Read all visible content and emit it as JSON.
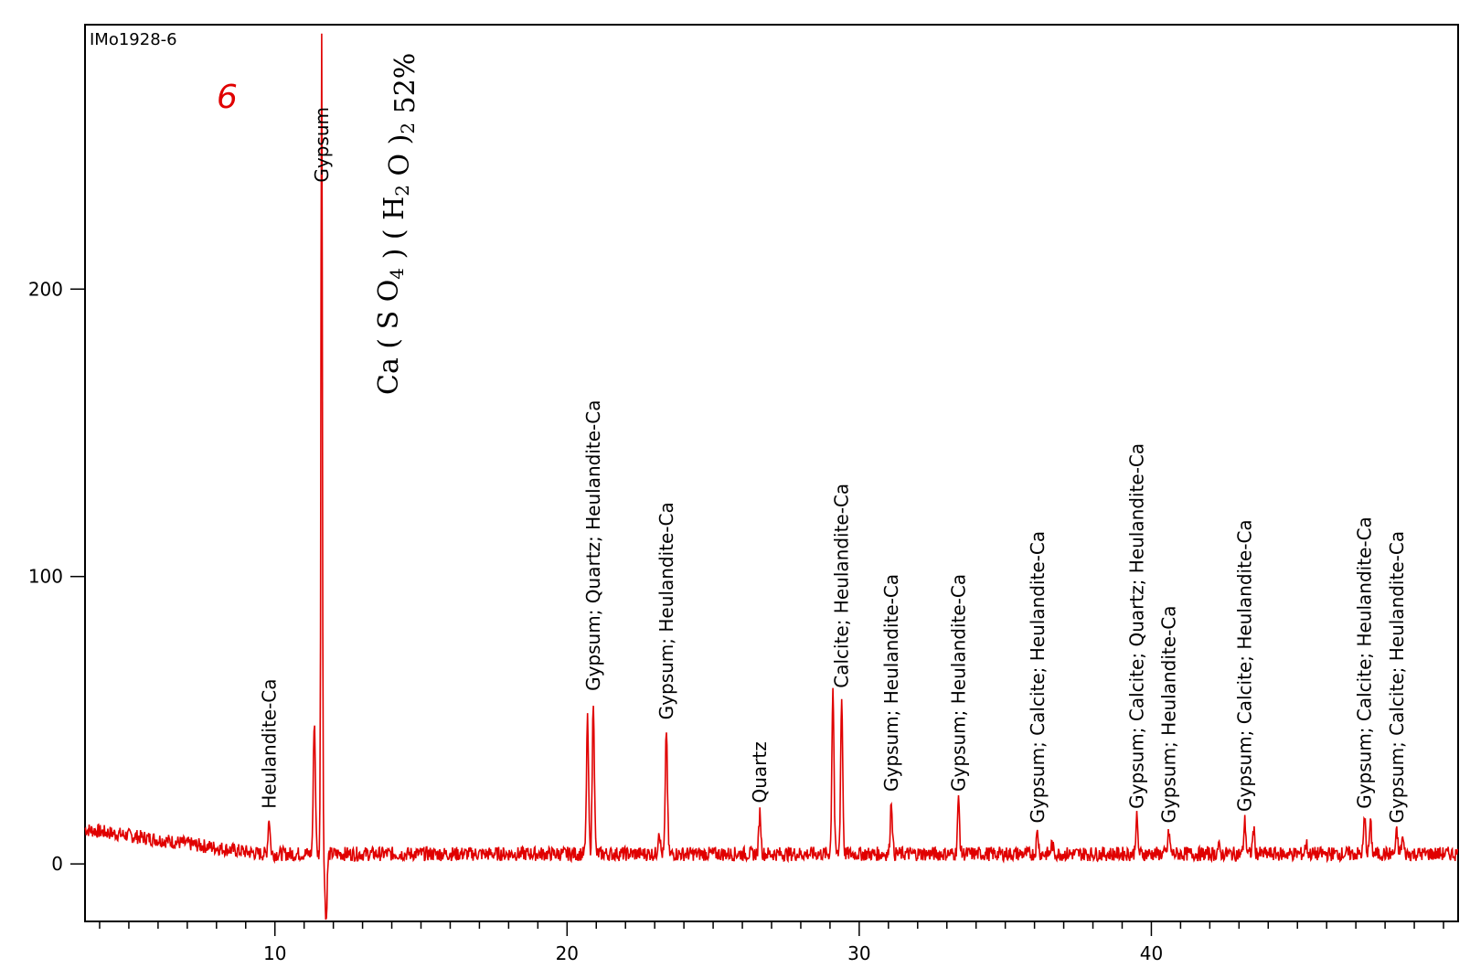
{
  "chart_data": {
    "type": "line",
    "title": "",
    "xlabel": "",
    "ylabel": "",
    "xlim": [
      3.5,
      50.5
    ],
    "ylim": [
      -20,
      292
    ],
    "x_ticks": [
      10,
      20,
      30,
      40
    ],
    "y_ticks": [
      0,
      100,
      200
    ],
    "x_minor_step": 1,
    "grid": false,
    "line_color": "#e00000",
    "annotations": {
      "sample_id": "IMo1928-6",
      "panel_number": "6",
      "formula": {
        "parts": [
          {
            "t": "Ca ( S O"
          },
          {
            "t": "4",
            "sub": true
          },
          {
            "t": " ) ( H"
          },
          {
            "t": "2",
            "sub": true
          },
          {
            "t": " O )"
          },
          {
            "t": "2",
            "sub": true
          },
          {
            "t": " 52%"
          }
        ]
      }
    },
    "baseline": {
      "x_start": 3.5,
      "x_end": 50.5,
      "start_level": 12,
      "decay_to": 3.5,
      "decay_until": 9.5,
      "noise_amplitude": 2.5
    },
    "peaks": [
      {
        "x": 9.8,
        "y": 16,
        "label": "Heulandite-Ca"
      },
      {
        "x": 11.35,
        "y": 50
      },
      {
        "x": 11.6,
        "y": 290,
        "label": "Gypsum"
      },
      {
        "x": 11.75,
        "y": -20
      },
      {
        "x": 20.7,
        "y": 50
      },
      {
        "x": 20.9,
        "y": 57,
        "label": "Gypsum; Quartz; Heulandite-Ca"
      },
      {
        "x": 23.15,
        "y": 12
      },
      {
        "x": 23.4,
        "y": 47,
        "label": "Gypsum; Heulandite-Ca"
      },
      {
        "x": 26.6,
        "y": 18,
        "label": "Quartz"
      },
      {
        "x": 29.1,
        "y": 62
      },
      {
        "x": 29.4,
        "y": 58,
        "label": "Calcite; Heulandite-Ca"
      },
      {
        "x": 31.1,
        "y": 22,
        "label": "Gypsum; Heulandite-Ca"
      },
      {
        "x": 33.4,
        "y": 22,
        "label": "Gypsum; Heulandite-Ca"
      },
      {
        "x": 36.1,
        "y": 11,
        "label": "Gypsum; Calcite; Heulandite-Ca"
      },
      {
        "x": 36.6,
        "y": 7
      },
      {
        "x": 39.5,
        "y": 16,
        "label": "Gypsum; Calcite; Quartz; Heulandite-Ca"
      },
      {
        "x": 40.6,
        "y": 11,
        "label": "Gypsum; Heulandite-Ca"
      },
      {
        "x": 42.3,
        "y": 6
      },
      {
        "x": 43.2,
        "y": 15,
        "label": "Gypsum; Calcite; Heulandite-Ca"
      },
      {
        "x": 43.5,
        "y": 12
      },
      {
        "x": 45.3,
        "y": 7
      },
      {
        "x": 47.3,
        "y": 16,
        "label": "Gypsum; Calcite; Heulandite-Ca"
      },
      {
        "x": 47.5,
        "y": 14
      },
      {
        "x": 48.4,
        "y": 11,
        "label": "Gypsum; Calcite; Heulandite-Ca"
      },
      {
        "x": 48.6,
        "y": 9
      }
    ]
  }
}
